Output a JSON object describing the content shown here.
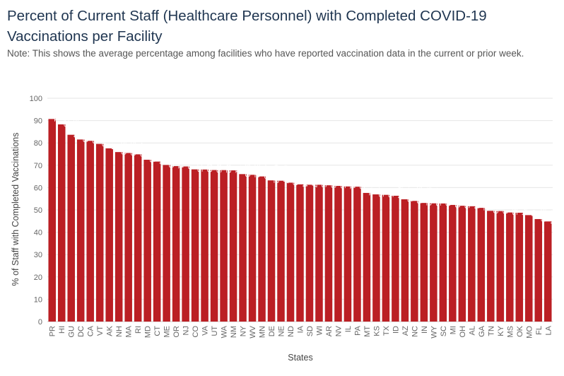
{
  "title": "Percent of Current Staff (Healthcare Personnel) with Completed COVID-19 Vaccinations per Facility",
  "note": "Note: This shows the average percentage among facilities who have reported vaccination data in the current or prior week.",
  "chart_data": {
    "type": "bar",
    "xlabel": "States",
    "ylabel": "% of Staff with Completed Vaccinations",
    "ylim": [
      0,
      100
    ],
    "yticks": [
      0,
      10,
      20,
      30,
      40,
      50,
      60,
      70,
      80,
      90,
      100
    ],
    "grid": "horizontal",
    "bar_color": "#bb1f24",
    "categories": [
      "PR",
      "HI",
      "GU",
      "DC",
      "CA",
      "VT",
      "AK",
      "NH",
      "MA",
      "RI",
      "MD",
      "CT",
      "ME",
      "OR",
      "NJ",
      "CO",
      "VA",
      "UT",
      "WA",
      "NM",
      "NY",
      "WV",
      "MN",
      "DE",
      "NE",
      "ND",
      "IA",
      "SD",
      "WI",
      "AR",
      "NV",
      "IL",
      "PA",
      "MT",
      "KS",
      "TX",
      "ID",
      "AZ",
      "NC",
      "IN",
      "WY",
      "SC",
      "MI",
      "OH",
      "AL",
      "GA",
      "TN",
      "KY",
      "MS",
      "OK",
      "MO",
      "FL",
      "LA"
    ],
    "values": [
      90.71,
      88.29,
      83.64,
      81.53,
      80.93,
      79.56,
      77.57,
      75.9,
      75.5,
      74.89,
      72.46,
      71.64,
      70.13,
      69.61,
      69.46,
      68.15,
      68.09,
      67.86,
      67.82,
      67.71,
      66.03,
      65.72,
      64.99,
      63.22,
      63.07,
      62.2,
      61.44,
      61.27,
      61.26,
      61.03,
      60.75,
      60.51,
      60.4,
      57.61,
      56.95,
      56.75,
      56.34,
      54.76,
      54.03,
      53.12,
      52.95,
      52.89,
      52.23,
      51.86,
      51.64,
      50.92,
      49.59,
      49.48,
      48.85,
      48.74,
      47.67,
      45.9,
      44.84
    ],
    "data_labels": [
      "90.71",
      "88.29",
      "83.64",
      "81.53",
      "80.93",
      "79.56",
      "77.57",
      "75.90",
      "75.50",
      "74.89",
      "72.46",
      "71.64",
      "70.13",
      "69.61",
      "69.46",
      "68.15",
      "68.09",
      "67.86",
      "67.82",
      "67.71",
      "66.03",
      "65.72",
      "64.99",
      "63.22",
      "63.07",
      "62.20",
      "61.44",
      "61.27",
      "61.26",
      "61.03",
      "60.75",
      "60.51",
      "60.40",
      "57.61",
      "56.95",
      "56.75",
      "56.34",
      "54.76",
      "54.03",
      "53.12",
      "52.95",
      "52.89",
      "52.23",
      "51.86",
      "51.64",
      "50.92",
      "49.59",
      "49.48",
      "48.85",
      "48.74",
      "47.67",
      "45.90",
      "44.84"
    ]
  }
}
